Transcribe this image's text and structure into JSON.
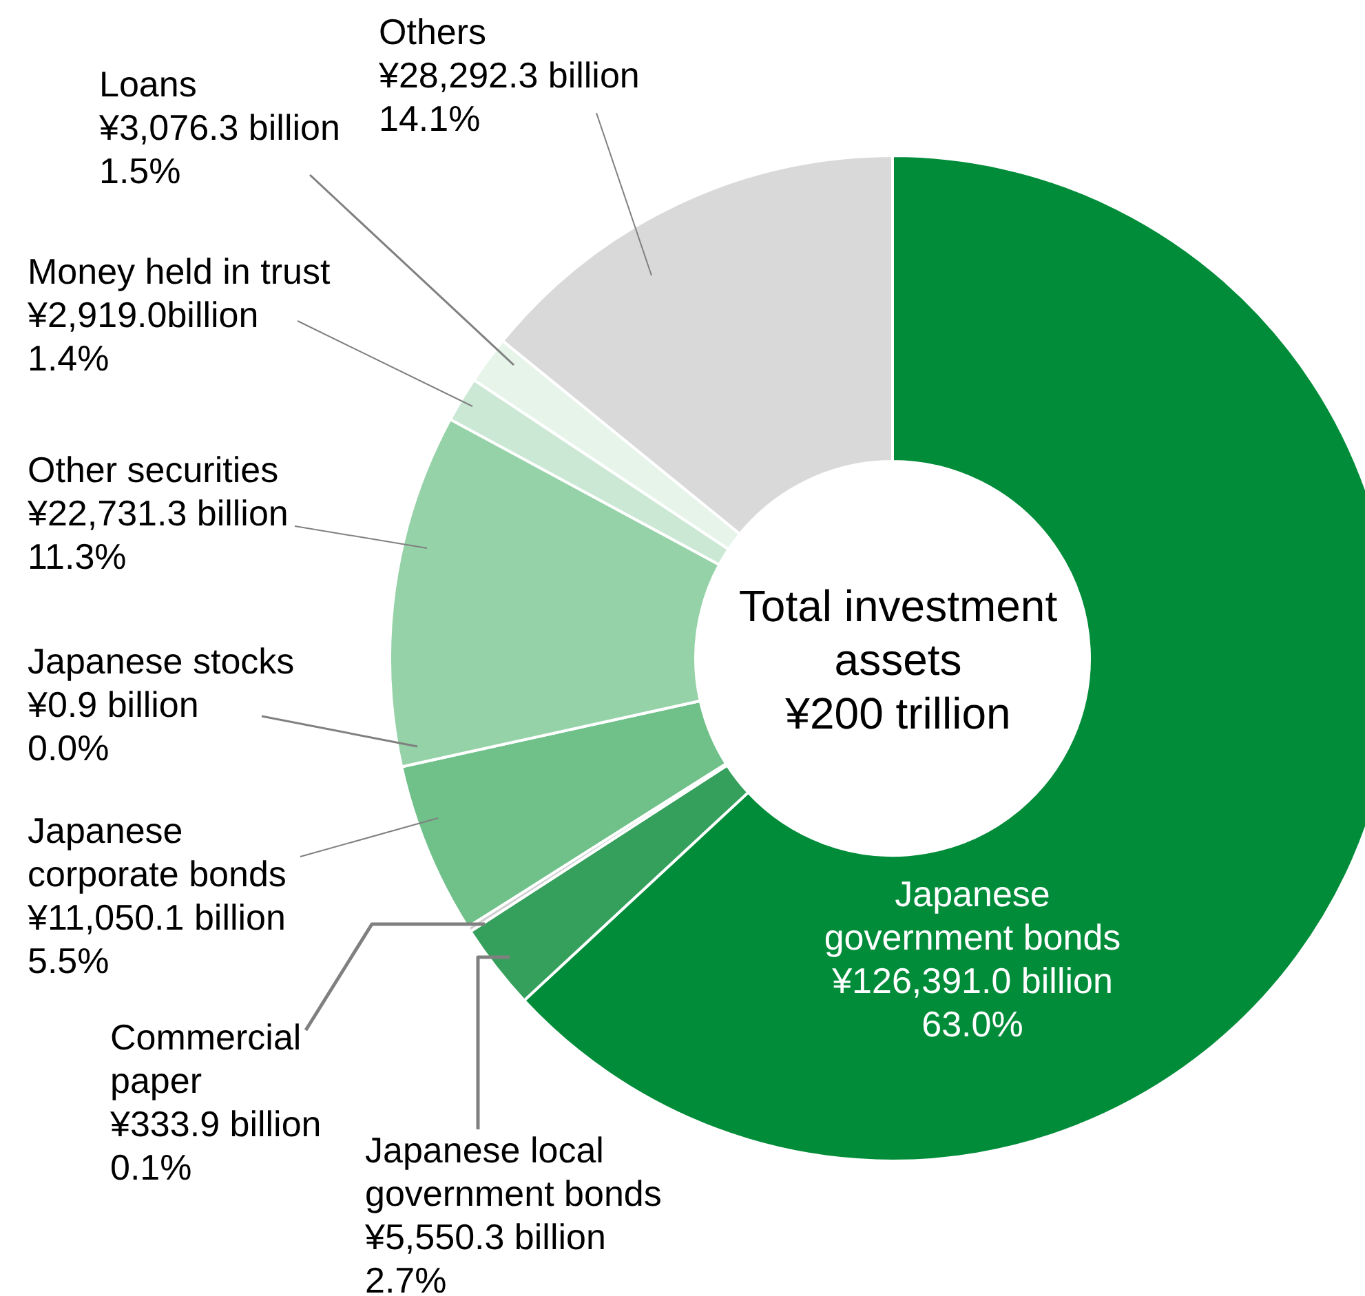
{
  "chart_data": {
    "type": "donut",
    "categories": [
      "Japanese government bonds",
      "Japanese local government bonds",
      "Commercial paper",
      "Japanese corporate bonds",
      "Japanese stocks",
      "Other securities",
      "Money held in trust",
      "Loans",
      "Others"
    ],
    "values": [
      126391.0,
      5550.3,
      333.9,
      11050.1,
      0.9,
      22731.3,
      2919.0,
      3076.3,
      28292.3
    ],
    "colors": [
      "#008c39",
      "#35a05c",
      "#cfcfcf",
      "#6fc089",
      "#cfcfcf",
      "#96d2a8",
      "#cbe8d5",
      "#e6f4ea",
      "#d9d9d9"
    ],
    "value_labels": [
      "¥126,391.0 billion",
      "¥5,550.3 billion",
      "¥333.9 billion",
      "¥11,050.1 billion",
      "¥0.9 billion",
      "¥22,731.3 billion",
      "¥2,919.0billion",
      "¥3,076.3 billion",
      "¥28,292.3 billion"
    ],
    "annotations": [
      "Total investment assets",
      "¥200 trillion",
      {
        "text": "63.0%",
        "x": "Japanese government bonds"
      },
      {
        "text": "2.7%",
        "x": "Japanese local government bonds"
      },
      {
        "text": "0.1%",
        "x": "Commercial paper"
      },
      {
        "text": "5.5%",
        "x": "Japanese corporate bonds"
      },
      {
        "text": "0.0%",
        "x": "Japanese stocks"
      },
      {
        "text": "11.3%",
        "x": "Other securities"
      },
      {
        "text": "1.4%",
        "x": "Money held in trust"
      },
      {
        "text": "1.5%",
        "x": "Loans"
      },
      {
        "text": "14.1%",
        "x": "Others"
      }
    ]
  }
}
